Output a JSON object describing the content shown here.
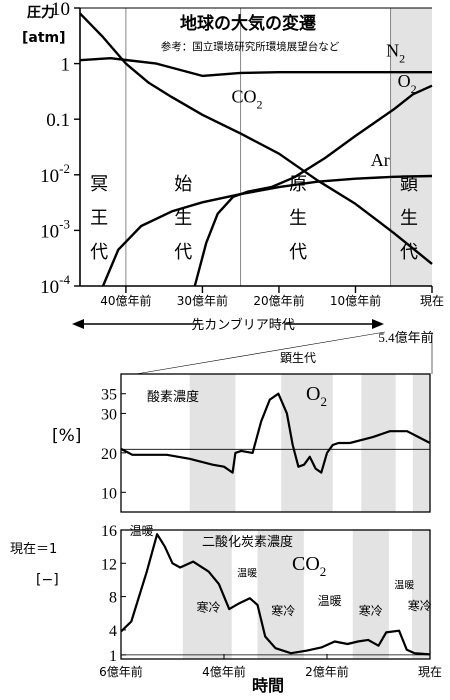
{
  "chart_data": [
    {
      "type": "line",
      "title": "地球の大気の変遷",
      "subtitle": "参考：国立環境研究所環境展望台など",
      "ylabel_lines": [
        "圧力",
        "[atm]"
      ],
      "yscale": "log",
      "ylim": [
        0.0001,
        10
      ],
      "xlim": [
        -4.6,
        0
      ],
      "ytick_labels": [
        {
          "value": 10,
          "base": "10",
          "exp": ""
        },
        {
          "value": 1,
          "base": "1",
          "exp": ""
        },
        {
          "value": 0.1,
          "base": "0.1",
          "exp": ""
        },
        {
          "value": 0.01,
          "base": "10",
          "exp": "-2"
        },
        {
          "value": 0.001,
          "base": "10",
          "exp": "-3"
        },
        {
          "value": 0.0001,
          "base": "10",
          "exp": "-4"
        }
      ],
      "xticks": [
        {
          "value": -4,
          "label": "40億年前"
        },
        {
          "value": -3,
          "label": "30億年前"
        },
        {
          "value": -2,
          "label": "20億年前"
        },
        {
          "value": -1,
          "label": "10億年前"
        },
        {
          "value": 0,
          "label": "現在"
        }
      ],
      "eon_boundaries": [
        -4.0,
        -2.5,
        -0.54
      ],
      "shaded_region": [
        -0.54,
        0
      ],
      "eons": [
        {
          "label_chars": [
            "冥",
            "王",
            "代"
          ],
          "x": -4.35
        },
        {
          "label_chars": [
            "始",
            "生",
            "代"
          ],
          "x": -3.25
        },
        {
          "label_chars": [
            "原",
            "生",
            "代"
          ],
          "x": -1.75
        },
        {
          "label_chars": [
            "顕",
            "生",
            "代"
          ],
          "x": -0.3
        }
      ],
      "series": [
        {
          "name": "N",
          "sub": "2",
          "label_x": -0.6,
          "label_y": 1.35,
          "x": [
            -4.6,
            -4.2,
            -3.6,
            -3.0,
            -2.5,
            -2.0,
            -1.0,
            0.0
          ],
          "y": [
            1.15,
            1.25,
            1.0,
            0.6,
            0.68,
            0.7,
            0.7,
            0.7
          ]
        },
        {
          "name": "O",
          "sub": "2",
          "label_x": -0.45,
          "label_y": 0.38,
          "x": [
            -3.1,
            -2.95,
            -2.8,
            -2.6,
            -2.4,
            -2.1,
            -1.8,
            -1.4,
            -1.0,
            -0.5,
            -0.25,
            0.0
          ],
          "y": [
            0.0001,
            0.0006,
            0.002,
            0.004,
            0.005,
            0.006,
            0.009,
            0.02,
            0.05,
            0.15,
            0.28,
            0.4
          ]
        },
        {
          "name": "CO",
          "sub": "2",
          "label_x": -2.62,
          "label_y": 0.2,
          "x": [
            -4.6,
            -4.3,
            -4.0,
            -3.7,
            -3.4,
            -3.0,
            -2.5,
            -2.0,
            -1.5,
            -1.0,
            -0.5,
            0.0
          ],
          "y": [
            8.0,
            3.0,
            1.0,
            0.45,
            0.25,
            0.12,
            0.055,
            0.024,
            0.008,
            0.003,
            0.0009,
            0.00025
          ]
        },
        {
          "name": "Ar",
          "sub": "",
          "label_x": -0.8,
          "label_y": 0.0145,
          "x": [
            -4.3,
            -4.1,
            -3.8,
            -3.4,
            -3.0,
            -2.5,
            -2.0,
            -1.5,
            -1.0,
            -0.5,
            0.0
          ],
          "y": [
            0.0001,
            0.00045,
            0.0012,
            0.0022,
            0.0032,
            0.0045,
            0.006,
            0.0075,
            0.0085,
            0.0092,
            0.0095
          ]
        }
      ],
      "precambrian": {
        "label": "先カンブリア時代",
        "end_label": "5.4億年前"
      }
    },
    {
      "type": "line",
      "title": "顕生代",
      "panel_title": "酸素濃度",
      "series_label": {
        "name": "O",
        "sub": "2"
      },
      "ylabel": "[%]",
      "ylim": [
        5,
        40
      ],
      "xlim": [
        -5.4,
        0
      ],
      "yticks": [
        10,
        20,
        30,
        35
      ],
      "reference_line": 20.9,
      "shaded_bands": [
        [
          -4.2,
          -3.4
        ],
        [
          -2.6,
          -1.7
        ],
        [
          -1.2,
          -0.6
        ],
        [
          -0.3,
          0.0
        ]
      ],
      "series": [
        {
          "x": [
            -5.4,
            -5.2,
            -5.0,
            -4.6,
            -4.2,
            -3.8,
            -3.6,
            -3.45,
            -3.4,
            -3.3,
            -3.1,
            -2.95,
            -2.8,
            -2.65,
            -2.5,
            -2.4,
            -2.3,
            -2.2,
            -2.1,
            -2.0,
            -1.9,
            -1.8,
            -1.7,
            -1.6,
            -1.4,
            -1.0,
            -0.7,
            -0.4,
            -0.2,
            0.0
          ],
          "y": [
            21,
            19.5,
            19.5,
            19.5,
            18.5,
            17,
            16.5,
            15,
            20,
            20.5,
            20,
            28,
            33.5,
            35,
            30,
            22,
            16.5,
            17,
            19,
            16,
            15,
            20,
            22,
            22.5,
            22.5,
            24,
            25.5,
            25.5,
            24,
            22.5
          ]
        }
      ]
    },
    {
      "type": "line",
      "panel_title": "二酸化炭素濃度",
      "series_label": {
        "name": "CO",
        "sub": "2"
      },
      "ylabel_lines": [
        "現在＝1",
        "[−]"
      ],
      "ylim": [
        0.5,
        16
      ],
      "xlim": [
        -6,
        0
      ],
      "yticks": [
        1,
        4,
        8,
        12,
        16
      ],
      "shaded_bands": [
        [
          -4.8,
          -3.85
        ],
        [
          -3.35,
          -2.45
        ],
        [
          -1.5,
          -0.8
        ],
        [
          -0.35,
          0.0
        ]
      ],
      "climate_labels": [
        {
          "text": "温暖",
          "x": -5.6,
          "y": 15.4,
          "size": 12
        },
        {
          "text": "寒冷",
          "x": -4.3,
          "y": 6.2,
          "size": 12
        },
        {
          "text": "温暖",
          "x": -3.55,
          "y": 10.4,
          "size": 10
        },
        {
          "text": "寒冷",
          "x": -2.85,
          "y": 5.8,
          "size": 12
        },
        {
          "text": "温暖",
          "x": -1.95,
          "y": 7.0,
          "size": 12
        },
        {
          "text": "寒冷",
          "x": -1.15,
          "y": 5.8,
          "size": 12
        },
        {
          "text": "温暖",
          "x": -0.5,
          "y": 9.0,
          "size": 10
        },
        {
          "text": "寒冷",
          "x": -0.2,
          "y": 6.4,
          "size": 12
        }
      ],
      "xticks": [
        {
          "value": -6,
          "label": "6億年前"
        },
        {
          "value": -4,
          "label": "4億年前"
        },
        {
          "value": -2,
          "label": "2億年前"
        },
        {
          "value": 0,
          "label": "現在"
        }
      ],
      "xlabel": "時間",
      "series": [
        {
          "x": [
            -6.0,
            -5.8,
            -5.5,
            -5.3,
            -5.15,
            -5.0,
            -4.85,
            -4.6,
            -4.3,
            -4.1,
            -3.9,
            -3.7,
            -3.5,
            -3.35,
            -3.2,
            -3.0,
            -2.7,
            -2.4,
            -2.1,
            -1.85,
            -1.6,
            -1.4,
            -1.2,
            -1.0,
            -0.85,
            -0.6,
            -0.45,
            -0.3,
            -0.1,
            0.0
          ],
          "y": [
            3.8,
            5,
            11,
            15.5,
            14,
            12,
            11.5,
            12.2,
            11,
            9.5,
            6.5,
            7.2,
            7.8,
            7,
            3.2,
            1.8,
            1.2,
            1.5,
            1.9,
            2.6,
            2.3,
            2.6,
            2.8,
            2.1,
            3.7,
            3.9,
            1.6,
            1.2,
            1.1,
            1.05
          ]
        }
      ]
    }
  ]
}
